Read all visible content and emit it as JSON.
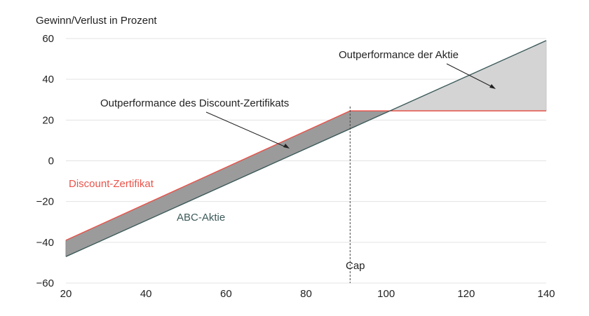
{
  "chart_data": {
    "type": "line",
    "ylabel": "Gewinn/Verlust in Prozent",
    "xlim": [
      20,
      140
    ],
    "ylim": [
      -60,
      60
    ],
    "x_ticks": [
      20,
      40,
      60,
      80,
      100,
      120,
      140
    ],
    "y_ticks": [
      60,
      40,
      20,
      0,
      -20,
      -40,
      -60
    ],
    "grid": "horizontal",
    "series": [
      {
        "name": "Discount-Zertifikat",
        "color": "#e8534a",
        "x": [
          20,
          91,
          140
        ],
        "y": [
          -39,
          24.5,
          24.5
        ]
      },
      {
        "name": "ABC-Aktie",
        "color": "#3d5a5a",
        "x": [
          20,
          140
        ],
        "y": [
          -47,
          59
        ]
      }
    ],
    "cap": {
      "label": "Cap",
      "x": 91
    },
    "annotations": [
      {
        "text": "Outperformance des Discount-Zertifikats",
        "color": "#222222"
      },
      {
        "text": "Outperformance der Aktie",
        "color": "#222222"
      }
    ],
    "fills": {
      "discount_outperformance": "#9b9b9b",
      "stock_outperformance": "#d4d4d4"
    }
  }
}
